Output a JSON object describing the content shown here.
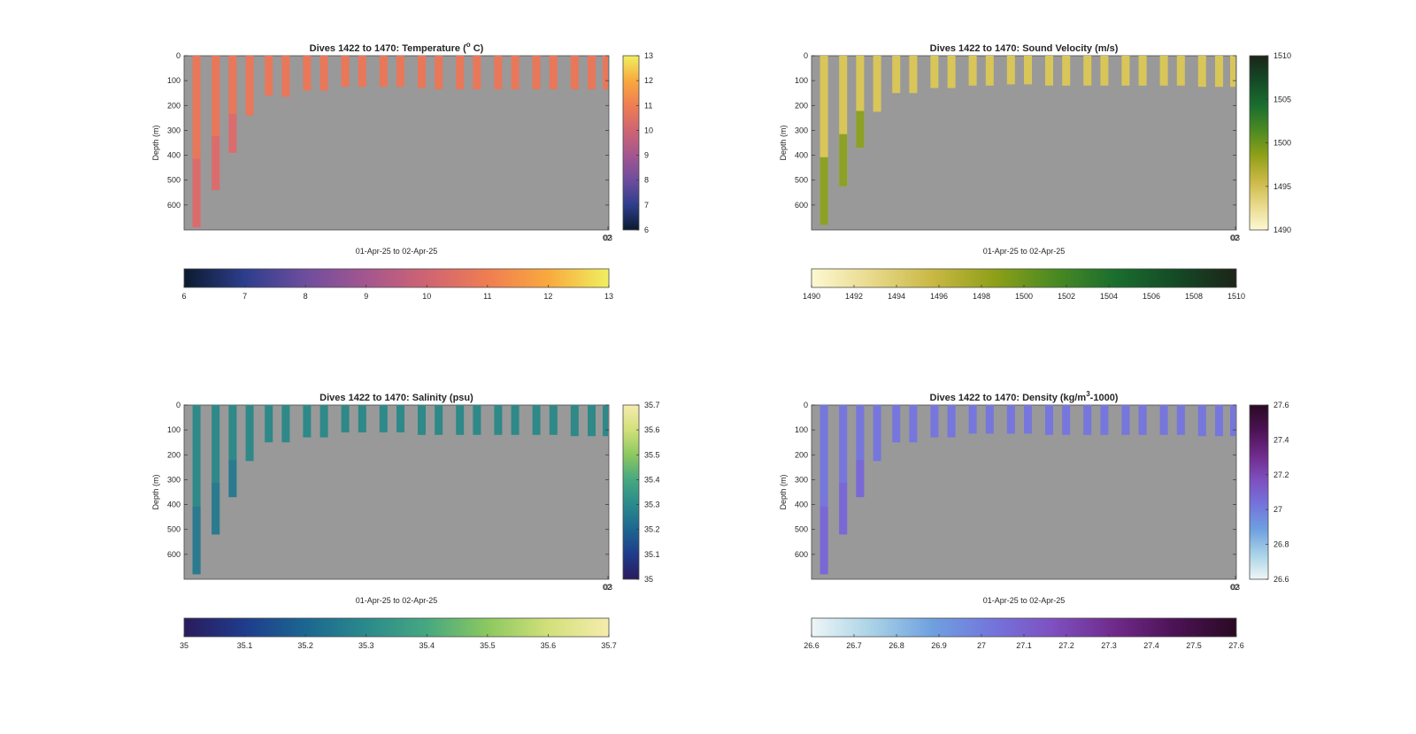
{
  "figure": {
    "background": "#ffffff",
    "plot_background": "#999999"
  },
  "chart_data": [
    {
      "type": "heatmap",
      "title_prefix": "Dives 1422 to 1470: Temperature (",
      "title_sup": "o",
      "title_suffix": " C)",
      "xlabel": "01-Apr-25 to 02-Apr-25",
      "ylabel": "Depth (m)",
      "ylim": [
        0,
        700
      ],
      "y_reversed": true,
      "yticks": [
        0,
        100,
        200,
        300,
        400,
        500,
        600
      ],
      "xtick_labels": [
        "02",
        "03"
      ],
      "grid": false,
      "colormap": [
        "#0b1a2e",
        "#2d3e8c",
        "#6e4d9e",
        "#a4568f",
        "#cf6472",
        "#ef7d52",
        "#f9a93e",
        "#f0f060"
      ],
      "clim": [
        6,
        13
      ],
      "profile_value": 10.7,
      "profile_value_deep": 10.2,
      "profile_color": "#e9775a",
      "profile_color_deep": "#d76a72",
      "vertical_colorbar": {
        "ticks": [
          "6",
          "7",
          "8",
          "9",
          "10",
          "11",
          "12",
          "13"
        ]
      },
      "horizontal_colorbar": {
        "ticks": [
          "6",
          "7",
          "8",
          "9",
          "10",
          "11",
          "12",
          "13"
        ]
      },
      "profile_max_depths": [
        690,
        540,
        390,
        240,
        160,
        165,
        140,
        140,
        125,
        125,
        125,
        125,
        130,
        135,
        135,
        135,
        135,
        135,
        135,
        135,
        135,
        135
      ]
    },
    {
      "type": "heatmap",
      "title_prefix": "Dives 1422 to 1470: Sound Velocity (m/s)",
      "title_sup": "",
      "title_suffix": "",
      "xlabel": "01-Apr-25 to 02-Apr-25",
      "ylabel": "Depth (m)",
      "ylim": [
        0,
        700
      ],
      "y_reversed": true,
      "yticks": [
        0,
        100,
        200,
        300,
        400,
        500,
        600
      ],
      "xtick_labels": [
        "02",
        "03"
      ],
      "grid": false,
      "colormap": [
        "#fdf8d2",
        "#e8d98a",
        "#c9b844",
        "#8fa018",
        "#4b8a22",
        "#1a6e2e",
        "#144a26",
        "#1c2418"
      ],
      "clim": [
        1490,
        1510
      ],
      "profile_value": 1494.5,
      "profile_value_deep": 1499,
      "profile_color": "#d9c659",
      "profile_color_deep": "#7e9a1c",
      "vertical_colorbar": {
        "ticks": [
          "1490",
          "1495",
          "1500",
          "1505",
          "1510"
        ]
      },
      "horizontal_colorbar": {
        "ticks": [
          "1490",
          "1492",
          "1494",
          "1496",
          "1498",
          "1500",
          "1502",
          "1504",
          "1506",
          "1508",
          "1510"
        ]
      },
      "profile_max_depths": [
        680,
        525,
        370,
        225,
        150,
        150,
        130,
        130,
        120,
        120,
        115,
        115,
        120,
        120,
        120,
        120,
        120,
        120,
        120,
        120,
        125,
        125
      ]
    },
    {
      "type": "heatmap",
      "title_prefix": "Dives 1422 to 1470: Salinity (psu)",
      "title_sup": "",
      "title_suffix": "",
      "xlabel": "01-Apr-25 to 02-Apr-25",
      "ylabel": "Depth (m)",
      "ylim": [
        0,
        700
      ],
      "y_reversed": true,
      "yticks": [
        0,
        100,
        200,
        300,
        400,
        500,
        600
      ],
      "xtick_labels": [
        "02",
        "03"
      ],
      "grid": false,
      "colormap": [
        "#2a1b5c",
        "#1f3c8c",
        "#1c6690",
        "#2a8a8c",
        "#46a880",
        "#8cc860",
        "#d2e07a",
        "#f5ecad"
      ],
      "clim": [
        35,
        35.7
      ],
      "profile_value": 35.28,
      "profile_value_deep": 35.25,
      "profile_color": "#2e8988",
      "profile_color_deep": "#2a7890",
      "vertical_colorbar": {
        "ticks": [
          "35",
          "35.1",
          "35.2",
          "35.3",
          "35.4",
          "35.5",
          "35.6",
          "35.7"
        ]
      },
      "horizontal_colorbar": {
        "ticks": [
          "35",
          "35.1",
          "35.2",
          "35.3",
          "35.4",
          "35.5",
          "35.6",
          "35.7"
        ]
      },
      "profile_max_depths": [
        680,
        520,
        370,
        225,
        150,
        150,
        130,
        130,
        110,
        110,
        110,
        110,
        120,
        120,
        120,
        120,
        120,
        120,
        120,
        120,
        125,
        125
      ]
    },
    {
      "type": "heatmap",
      "title_prefix": "Dives 1422 to 1470: Density (kg/m",
      "title_sup": "3",
      "title_suffix": "-1000)",
      "xlabel": "01-Apr-25 to 02-Apr-25",
      "ylabel": "Depth (m)",
      "ylim": [
        0,
        700
      ],
      "y_reversed": true,
      "yticks": [
        0,
        100,
        200,
        300,
        400,
        500,
        600
      ],
      "xtick_labels": [
        "02",
        "03"
      ],
      "grid": false,
      "colormap": [
        "#eef6f6",
        "#a9d2e6",
        "#6ea0e0",
        "#7474dc",
        "#7e4fbf",
        "#6f2a8a",
        "#4b1254",
        "#2a0a22"
      ],
      "clim": [
        26.6,
        27.6
      ],
      "profile_value": 27.03,
      "profile_value_deep": 27.07,
      "profile_color": "#7676dc",
      "profile_color_deep": "#7a66d4",
      "vertical_colorbar": {
        "ticks": [
          "26.6",
          "26.8",
          "27",
          "27.2",
          "27.4",
          "27.6"
        ]
      },
      "horizontal_colorbar": {
        "ticks": [
          "26.6",
          "26.7",
          "26.8",
          "26.9",
          "27",
          "27.1",
          "27.2",
          "27.3",
          "27.4",
          "27.5",
          "27.6"
        ]
      },
      "profile_max_depths": [
        680,
        520,
        370,
        225,
        150,
        150,
        130,
        130,
        115,
        115,
        115,
        115,
        120,
        120,
        120,
        120,
        120,
        120,
        120,
        120,
        125,
        125
      ]
    }
  ]
}
